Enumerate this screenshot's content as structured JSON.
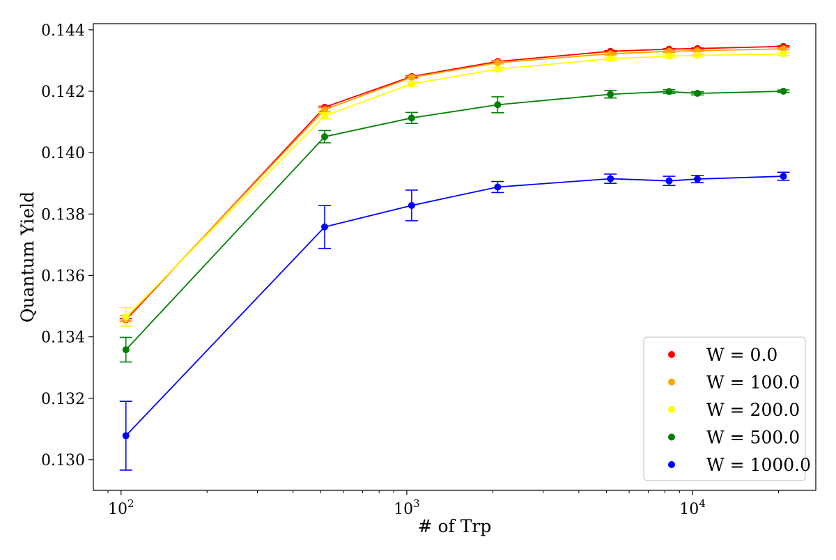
{
  "chart_data": {
    "type": "line",
    "title": "",
    "xlabel": "# of Trp",
    "ylabel": "Quantum Yield",
    "xscale": "log",
    "xlim": [
      80,
      27000
    ],
    "ylim": [
      0.129,
      0.1442
    ],
    "x_ticks": [
      {
        "value": 100,
        "base": "10",
        "exp": "2"
      },
      {
        "value": 1000,
        "base": "10",
        "exp": "3"
      },
      {
        "value": 10000,
        "base": "10",
        "exp": "4"
      }
    ],
    "y_ticks": [
      0.13,
      0.132,
      0.134,
      0.136,
      0.138,
      0.14,
      0.142,
      0.144
    ],
    "y_tick_labels": [
      "0.130",
      "0.132",
      "0.134",
      "0.136",
      "0.138",
      "0.140",
      "0.142",
      "0.144"
    ],
    "grid": false,
    "legend_position": "lower-right",
    "series": [
      {
        "name": "W = 0.0",
        "color": "#ff0000",
        "x": [
          104,
          516,
          1040,
          2080,
          5160,
          8280,
          10400,
          20800
        ],
        "y": [
          0.13455,
          0.14148,
          0.14248,
          0.14297,
          0.1433,
          0.14337,
          0.14339,
          0.14346
        ],
        "err": [
          4e-05,
          3e-05,
          3e-05,
          2e-05,
          2e-05,
          2e-05,
          2e-05,
          2e-05
        ]
      },
      {
        "name": "W = 100.0",
        "color": "#ffa500",
        "x": [
          104,
          516,
          1040,
          2080,
          5160,
          8280,
          10400,
          20800
        ],
        "y": [
          0.1346,
          0.1414,
          0.14245,
          0.14293,
          0.14322,
          0.1433,
          0.14332,
          0.14338
        ],
        "err": [
          0.0001,
          5e-05,
          4e-05,
          4e-05,
          4e-05,
          4e-05,
          3e-05,
          3e-05
        ]
      },
      {
        "name": "W = 200.0",
        "color": "#ffff00",
        "x": [
          104,
          516,
          1040,
          2080,
          5160,
          8280,
          10400,
          20800
        ],
        "y": [
          0.13465,
          0.1412,
          0.14224,
          0.14272,
          0.14306,
          0.14314,
          0.14317,
          0.14321
        ],
        "err": [
          0.0003,
          0.0001,
          7e-05,
          6e-05,
          5e-05,
          5e-05,
          5e-05,
          5e-05
        ]
      },
      {
        "name": "W = 500.0",
        "color": "#008000",
        "x": [
          104,
          516,
          1040,
          2080,
          5160,
          8280,
          10400,
          20800
        ],
        "y": [
          0.13358,
          0.14052,
          0.14113,
          0.14156,
          0.1419,
          0.14199,
          0.14193,
          0.142
        ],
        "err": [
          0.0004,
          0.0002,
          0.00018,
          0.00026,
          0.00012,
          6e-05,
          5e-05,
          4e-05
        ]
      },
      {
        "name": "W = 1000.0",
        "color": "#0000ff",
        "x": [
          104,
          516,
          1040,
          2080,
          5160,
          8280,
          10400,
          20800
        ],
        "y": [
          0.13078,
          0.13758,
          0.13828,
          0.13888,
          0.13915,
          0.13908,
          0.13914,
          0.13923
        ],
        "err": [
          0.00112,
          0.0007,
          0.0005,
          0.00018,
          0.00015,
          0.00015,
          0.00012,
          0.00013
        ]
      }
    ]
  }
}
